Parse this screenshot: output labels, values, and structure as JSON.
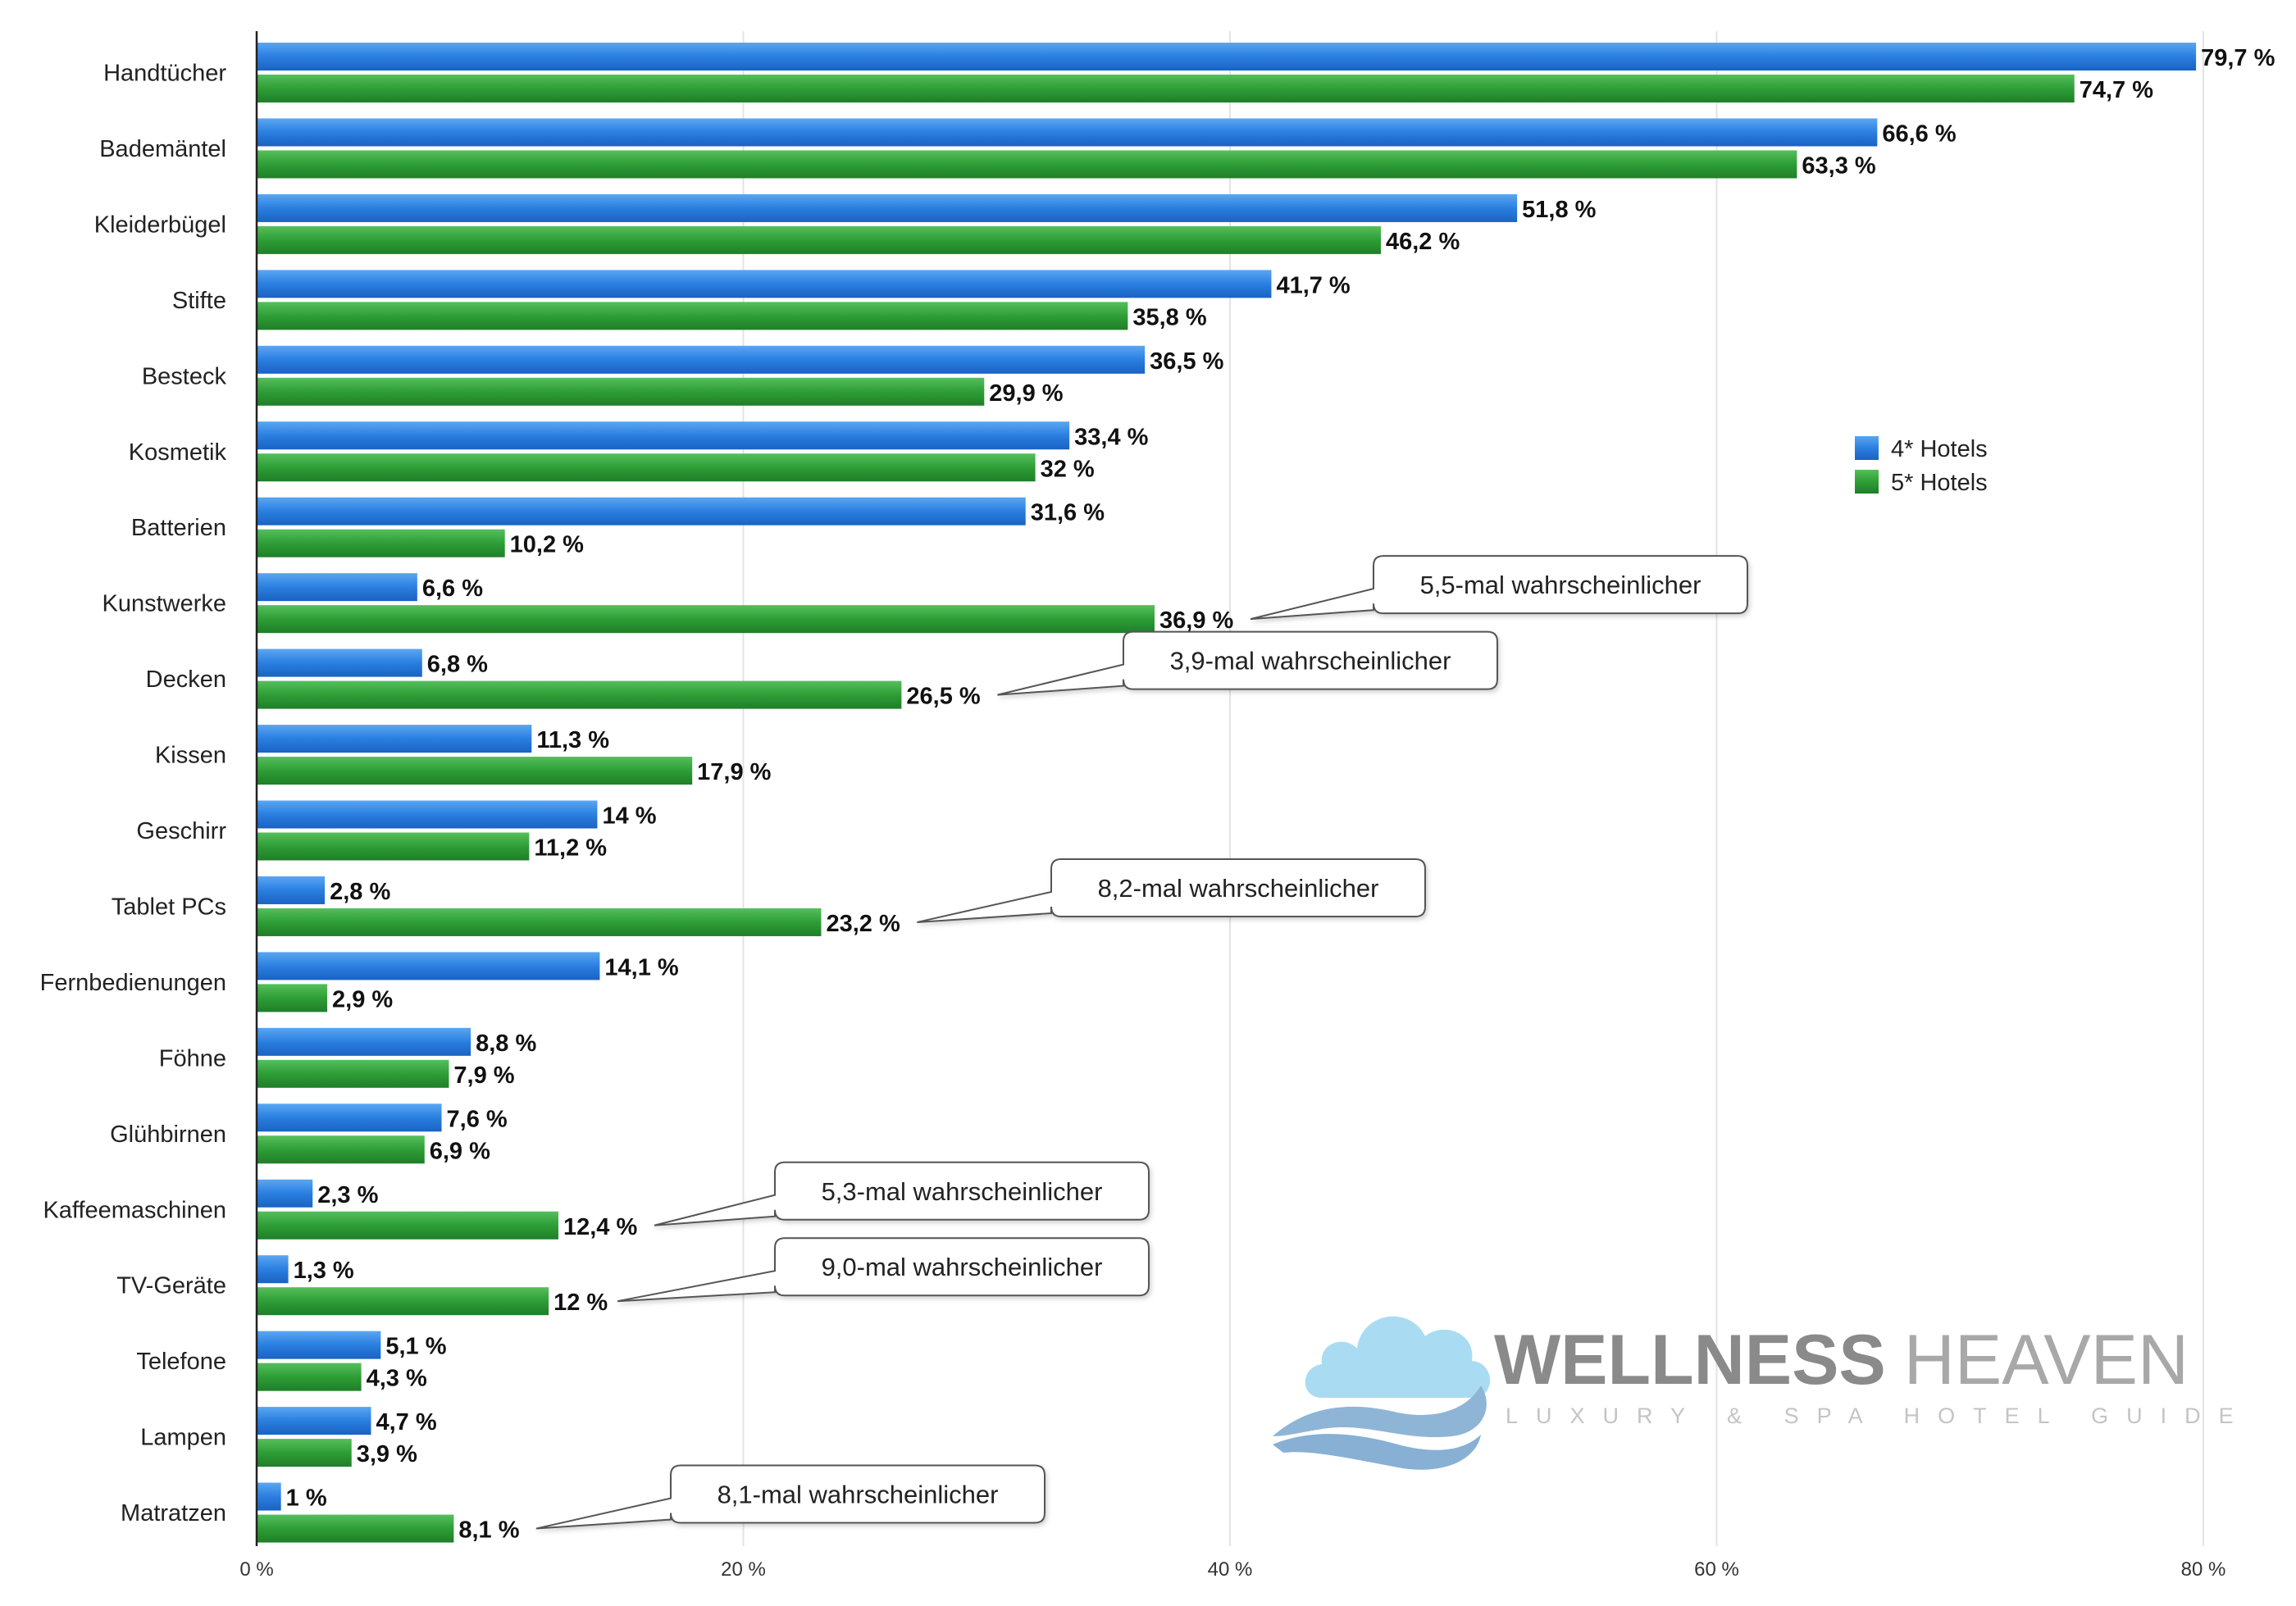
{
  "chart_data": {
    "type": "bar",
    "orientation": "horizontal",
    "categories": [
      "Handtücher",
      "Bademäntel",
      "Kleiderbügel",
      "Stifte",
      "Besteck",
      "Kosmetik",
      "Batterien",
      "Kunstwerke",
      "Decken",
      "Kissen",
      "Geschirr",
      "Tablet PCs",
      "Fernbedienungen",
      "Föhne",
      "Glühbirnen",
      "Kaffeemaschinen",
      "TV-Geräte",
      "Telefone",
      "Lampen",
      "Matratzen"
    ],
    "series": [
      {
        "name": "4* Hotels",
        "color": "#2a7fe0",
        "values": [
          79.7,
          66.6,
          51.8,
          41.7,
          36.5,
          33.4,
          31.6,
          6.6,
          6.8,
          11.3,
          14,
          2.8,
          14.1,
          8.8,
          7.6,
          2.3,
          1.3,
          5.1,
          4.7,
          1
        ],
        "labels": [
          "79,7 %",
          "66,6 %",
          "51,8 %",
          "41,7 %",
          "36,5 %",
          "33,4 %",
          "31,6 %",
          "6,6 %",
          "6,8 %",
          "11,3 %",
          "14 %",
          "2,8 %",
          "14,1 %",
          "8,8 %",
          "7,6 %",
          "2,3 %",
          "1,3 %",
          "5,1 %",
          "4,7 %",
          "1 %"
        ]
      },
      {
        "name": "5* Hotels",
        "color": "#2e9e36",
        "values": [
          74.7,
          63.3,
          46.2,
          35.8,
          29.9,
          32,
          10.2,
          36.9,
          26.5,
          17.9,
          11.2,
          23.2,
          2.9,
          7.9,
          6.9,
          12.4,
          12,
          4.3,
          3.9,
          8.1
        ],
        "labels": [
          "74,7 %",
          "63,3 %",
          "46,2 %",
          "35,8 %",
          "29,9 %",
          "32 %",
          "10,2 %",
          "36,9 %",
          "26,5 %",
          "17,9 %",
          "11,2 %",
          "23,2 %",
          "2,9 %",
          "7,9 %",
          "6,9 %",
          "12,4 %",
          "12 %",
          "4,3 %",
          "3,9 %",
          "8,1 %"
        ]
      }
    ],
    "xlim": [
      0,
      80
    ],
    "xticks": [
      0,
      20,
      40,
      60,
      80
    ],
    "xtick_labels": [
      "0 %",
      "20 %",
      "40 %",
      "60 %",
      "80 %"
    ],
    "grid": "vertical",
    "legend": {
      "placement": "right-middle",
      "entries": [
        "4* Hotels",
        "5* Hotels"
      ]
    },
    "annotations": [
      {
        "category": "Kunstwerke",
        "text": "5,5-mal wahrscheinlicher"
      },
      {
        "category": "Decken",
        "text": "3,9-mal wahrscheinlicher"
      },
      {
        "category": "Tablet PCs",
        "text": "8,2-mal wahrscheinlicher"
      },
      {
        "category": "Kaffeemaschinen",
        "text": "5,3-mal wahrscheinlicher"
      },
      {
        "category": "TV-Geräte",
        "text": "9,0-mal wahrscheinlicher"
      },
      {
        "category": "Matratzen",
        "text": "8,1-mal wahrscheinlicher"
      }
    ]
  },
  "watermark": {
    "brand_bold": "WELLNESS",
    "brand_light": "HEAVEN",
    "tagline": "LUXURY & SPA HOTEL GUIDE",
    "logo_icon": "cloud-wave-logo-icon"
  }
}
